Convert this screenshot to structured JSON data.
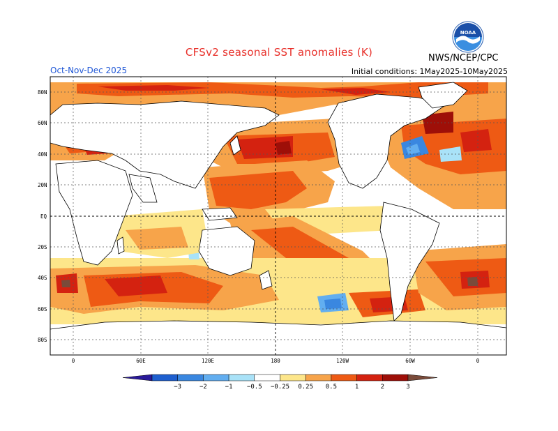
{
  "header": {
    "title": "CFSv2 seasonal SST anomalies (K)",
    "period": "Oct-Nov-Dec 2025",
    "initial_conditions": "Initial conditions: 1May2025-10May2025",
    "agency": "NWS/NCEP/CPC",
    "logo_text": "NOAA"
  },
  "map": {
    "lat_labels": [
      "80N",
      "60N",
      "40N",
      "20N",
      "EQ",
      "20S",
      "40S",
      "60S",
      "80S"
    ],
    "lon_labels": [
      "0",
      "60E",
      "120E",
      "180",
      "120W",
      "60W",
      "0"
    ]
  },
  "colorbar": {
    "labels": [
      "−3",
      "−2",
      "−1",
      "−0.5",
      "−0.25",
      "0.25",
      "0.5",
      "1",
      "2",
      "3"
    ],
    "colors": [
      "#2a1a9a",
      "#1e5fcf",
      "#3a87e0",
      "#62aef0",
      "#a9e2f8",
      "#ffffff",
      "#fde68a",
      "#f7a44a",
      "#ee5a14",
      "#d42210",
      "#9e0f08",
      "#7a4b3a"
    ]
  }
}
